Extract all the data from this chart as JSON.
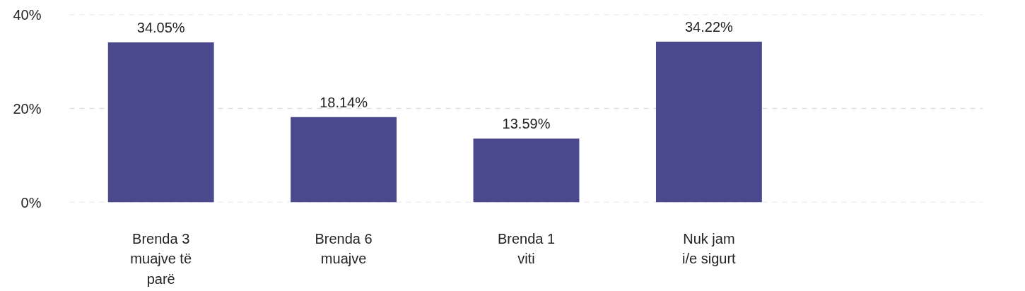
{
  "chart_data": {
    "type": "bar",
    "categories": [
      "Brenda 3 muajve të parë",
      "Brenda 6 muajve",
      "Brenda 1 viti",
      "Nuk jam i/e sigurt",
      null
    ],
    "values": [
      34.05,
      18.14,
      13.59,
      34.22,
      null
    ],
    "value_labels": [
      "34.05%",
      "18.14%",
      "13.59%",
      "34.22%",
      null
    ],
    "color": "#4a498e",
    "ylim": [
      0,
      40
    ],
    "yticks": [
      {
        "value": 0,
        "label": "0%"
      },
      {
        "value": 20,
        "label": "20%"
      },
      {
        "value": 40,
        "label": "40%"
      }
    ],
    "grid": "y"
  }
}
